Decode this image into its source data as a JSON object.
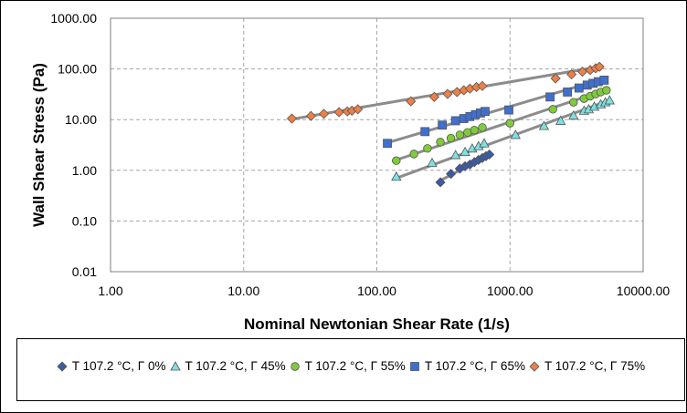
{
  "chart_data": {
    "type": "scatter",
    "title": "",
    "xlabel": "Nominal Newtonian Shear Rate (1/s)",
    "ylabel": "Wall Shear Stress (Pa)",
    "xscale": "log",
    "yscale": "log",
    "xlim": [
      1,
      10000
    ],
    "ylim": [
      0.01,
      1000
    ],
    "xticks": [
      "1.00",
      "10.00",
      "100.00",
      "1000.00",
      "10000.00"
    ],
    "yticks": [
      "0.01",
      "0.10",
      "1.00",
      "10.00",
      "100.00",
      "1000.00"
    ],
    "grid": "dashed",
    "legend_position": "bottom",
    "series": [
      {
        "name": "T  107.2  °C, Γ 0%",
        "marker": "diamond",
        "color": "#3B5BA5",
        "x": [
          300,
          360,
          420,
          460,
          500,
          540,
          580,
          620,
          660,
          700
        ],
        "y": [
          0.58,
          0.85,
          1.08,
          1.2,
          1.3,
          1.45,
          1.6,
          1.75,
          1.9,
          2.05
        ],
        "fit": [
          [
            290,
            0.6
          ],
          [
            720,
            2.1
          ]
        ]
      },
      {
        "name": "T  107.2  °C, Γ 45%",
        "marker": "triangle",
        "color": "#7FE0E0",
        "x": [
          140,
          260,
          390,
          460,
          520,
          580,
          640,
          1100,
          1800,
          2400,
          3000,
          3600,
          3900,
          4300,
          4800,
          5200,
          5600
        ],
        "y": [
          0.75,
          1.4,
          2.0,
          2.3,
          2.7,
          3.0,
          3.4,
          5.0,
          7.5,
          9.5,
          12,
          15,
          16,
          18,
          20,
          22,
          24
        ],
        "fit": [
          [
            140,
            0.7
          ],
          [
            5800,
            25
          ]
        ]
      },
      {
        "name": "T  107.2  °C, Γ 55%",
        "marker": "circle",
        "color": "#7FCB3A",
        "x": [
          140,
          190,
          240,
          300,
          360,
          420,
          480,
          540,
          620,
          1000,
          2100,
          3000,
          3600,
          4000,
          4400,
          4800,
          5300
        ],
        "y": [
          1.55,
          2.1,
          2.7,
          3.6,
          4.3,
          5.0,
          5.6,
          6.2,
          7.0,
          8.5,
          16,
          22,
          26,
          29,
          32,
          35,
          38
        ],
        "fit": [
          [
            130,
            1.5
          ],
          [
            5500,
            40
          ]
        ]
      },
      {
        "name": "T  107.2  °C, Γ 65%",
        "marker": "square",
        "color": "#3F6FCF",
        "x": [
          120,
          230,
          310,
          390,
          450,
          500,
          550,
          600,
          650,
          980,
          2000,
          2700,
          3300,
          3800,
          4200,
          4600,
          5100
        ],
        "y": [
          3.4,
          5.8,
          7.8,
          9.5,
          10.5,
          11.5,
          12.5,
          13.5,
          14.5,
          15.5,
          28,
          35,
          42,
          48,
          52,
          56,
          60
        ],
        "fit": [
          [
            120,
            3.5
          ],
          [
            5200,
            65
          ]
        ]
      },
      {
        "name": "T  107.2  °C, Γ 75%",
        "marker": "diamond",
        "color": "#EE7F45",
        "x": [
          23,
          32,
          40,
          52,
          60,
          65,
          72,
          180,
          270,
          340,
          400,
          450,
          500,
          560,
          620,
          2200,
          2900,
          3500,
          4000,
          4400,
          4700
        ],
        "y": [
          10.5,
          11.8,
          13,
          14,
          14.5,
          15,
          16,
          23,
          28,
          32,
          35,
          38,
          41,
          44,
          46,
          65,
          78,
          88,
          95,
          103,
          110
        ],
        "fit": [
          [
            22,
            10
          ],
          [
            4800,
            112
          ]
        ]
      }
    ]
  }
}
